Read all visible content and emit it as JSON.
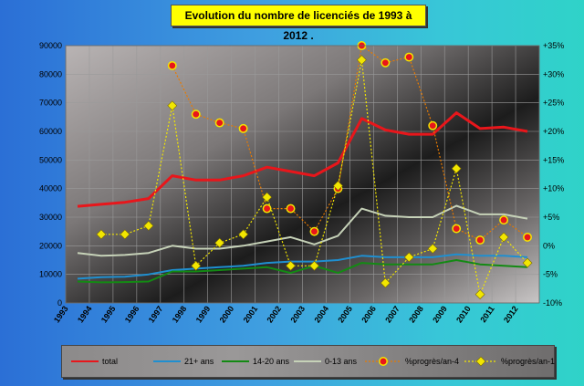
{
  "chart_data": {
    "type": "line",
    "title": "Evolution du nombre de licenciés de 1993 à 2012  .",
    "x": [
      "1993",
      "1994",
      "1995",
      "1996",
      "1997",
      "1998",
      "1999",
      "2000",
      "2001",
      "2002",
      "2003",
      "2004",
      "2005",
      "2006",
      "2007",
      "2008",
      "2009",
      "2010",
      "2011",
      "2012"
    ],
    "ylim": [
      0,
      90000
    ],
    "yticks": [
      "0",
      "10000",
      "20000",
      "30000",
      "40000",
      "50000",
      "60000",
      "70000",
      "80000",
      "90000"
    ],
    "y2lim": [
      -10,
      35
    ],
    "y2ticks": [
      "-10%",
      "-5%",
      "0%",
      "+5%",
      "+10%",
      "+15%",
      "+20%",
      "+25%",
      "+30%",
      "+35%"
    ],
    "grid": true,
    "legend_position": "bottom",
    "series": [
      {
        "name": "total",
        "axis": "left",
        "color": "#e8161b",
        "marker": "none",
        "values": [
          33800,
          34500,
          35200,
          36500,
          44500,
          43000,
          43000,
          44500,
          47500,
          46000,
          44500,
          49000,
          64500,
          60500,
          59000,
          59000,
          66500,
          61000,
          61500,
          60000
        ]
      },
      {
        "name": "21+ ans",
        "axis": "left",
        "color": "#1f8fd0",
        "marker": "none",
        "values": [
          8500,
          9000,
          9200,
          10000,
          11500,
          12000,
          12500,
          13000,
          14000,
          14500,
          14500,
          15000,
          16500,
          16000,
          16000,
          16000,
          17000,
          16500,
          16500,
          16000
        ]
      },
      {
        "name": "14-20 ans",
        "axis": "left",
        "color": "#138a13",
        "marker": "none",
        "values": [
          7500,
          7200,
          7300,
          7500,
          11000,
          11000,
          11500,
          12000,
          12500,
          10500,
          13000,
          10500,
          14000,
          13500,
          13500,
          13500,
          15000,
          13500,
          13000,
          12500
        ]
      },
      {
        "name": "0-13 ans",
        "axis": "left",
        "color": "#c6d2b8",
        "marker": "none",
        "values": [
          17500,
          16500,
          16800,
          17500,
          20000,
          19000,
          19000,
          20000,
          21500,
          23000,
          20500,
          23500,
          33000,
          30500,
          30000,
          30000,
          34000,
          31000,
          31000,
          29500
        ]
      },
      {
        "name": "%progrès/an-4",
        "axis": "right",
        "color": "#e87a00",
        "marker": "circle",
        "values": [
          null,
          null,
          null,
          null,
          31.5,
          23,
          21.5,
          20.5,
          6.5,
          6.5,
          2.5,
          10,
          35,
          32,
          33,
          21,
          3,
          1,
          4.5,
          1.5
        ]
      },
      {
        "name": "%progrès/an-1",
        "axis": "right",
        "color": "#f2e600",
        "marker": "diamond",
        "values": [
          null,
          2,
          2,
          3.5,
          24.5,
          -3.5,
          0.5,
          2,
          8.5,
          -3.5,
          -3.5,
          10.5,
          32.5,
          -6.5,
          -2,
          -0.5,
          13.5,
          -8.5,
          1.5,
          -3
        ]
      }
    ]
  }
}
